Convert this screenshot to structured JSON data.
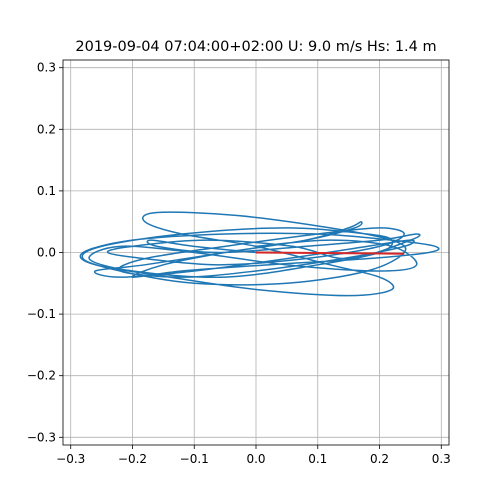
{
  "chart_data": {
    "type": "line",
    "title": "2019-09-04 07:04:00+02:00 U: 9.0 m/s Hs: 1.4 m",
    "xlabel": "",
    "ylabel": "",
    "xlim": [
      -0.3125,
      0.3125
    ],
    "ylim": [
      -0.3125,
      0.3125
    ],
    "grid": true,
    "x_ticks": [
      -0.3,
      -0.2,
      -0.1,
      0.0,
      0.1,
      0.2,
      0.3
    ],
    "y_ticks": [
      0.3,
      0.2,
      0.1,
      0.0,
      -0.1,
      -0.2,
      -0.3
    ],
    "x_tick_labels": [
      "−0.3",
      "−0.2",
      "−0.1",
      "0.0",
      "0.1",
      "0.2",
      "0.3"
    ],
    "y_tick_labels": [
      "0.3",
      "0.2",
      "0.1",
      "0.0",
      "−0.1",
      "−0.2",
      "−0.3"
    ],
    "series": [
      {
        "color": "#1f77b4",
        "x": [
          0.0,
          0.12,
          0.22,
          0.26,
          0.2,
          0.05,
          -0.1,
          -0.22,
          -0.27,
          -0.2,
          -0.05,
          0.1,
          0.2,
          0.22,
          0.18,
          0.05,
          -0.12,
          -0.25,
          -0.28,
          -0.22,
          -0.1,
          0.05,
          0.18,
          0.24,
          0.22,
          0.12,
          -0.03,
          -0.16,
          -0.18,
          -0.12,
          0.0,
          0.12,
          0.2,
          0.22,
          0.15,
          0.0,
          -0.14,
          -0.26,
          -0.28,
          -0.2,
          -0.05,
          0.1,
          0.22,
          0.29,
          0.28,
          0.18,
          0.02,
          -0.12,
          -0.2,
          -0.15,
          -0.05,
          0.08,
          0.15,
          0.17,
          0.16,
          0.08,
          -0.05,
          -0.18,
          -0.26,
          -0.22,
          -0.1,
          0.05,
          0.18,
          0.25,
          0.24,
          0.14,
          0.0,
          -0.12,
          -0.22,
          -0.18,
          -0.05,
          0.1,
          0.2,
          0.24,
          0.2,
          0.08,
          -0.06,
          -0.18,
          -0.24,
          -0.2,
          -0.08,
          0.06,
          0.15,
          0.25,
          0.26,
          0.2,
          0.08,
          -0.06,
          -0.16,
          -0.17,
          -0.1,
          0.0
        ],
        "y": [
          0.01,
          0.02,
          0.01,
          -0.02,
          -0.03,
          -0.02,
          0.0,
          0.01,
          -0.01,
          -0.03,
          -0.04,
          -0.02,
          0.0,
          0.02,
          0.03,
          0.04,
          0.03,
          0.01,
          -0.01,
          -0.03,
          -0.05,
          -0.05,
          -0.03,
          0.0,
          0.02,
          0.04,
          0.06,
          0.065,
          0.05,
          0.03,
          0.01,
          -0.02,
          -0.04,
          -0.06,
          -0.07,
          -0.06,
          -0.04,
          -0.02,
          0.0,
          0.02,
          0.03,
          0.03,
          0.02,
          0.01,
          0.0,
          -0.01,
          -0.02,
          -0.03,
          -0.04,
          -0.02,
          0.0,
          0.02,
          0.04,
          0.05,
          0.04,
          0.02,
          0.0,
          -0.02,
          -0.03,
          -0.04,
          -0.03,
          -0.01,
          0.01,
          0.02,
          0.01,
          -0.01,
          -0.03,
          -0.04,
          -0.03,
          -0.01,
          0.01,
          0.03,
          0.04,
          0.03,
          0.01,
          -0.01,
          -0.02,
          -0.01,
          0.0,
          0.01,
          0.02,
          0.01,
          -0.01,
          0.02,
          0.03,
          0.02,
          0.01,
          0.0,
          0.01,
          0.02,
          0.01,
          0.0
        ]
      },
      {
        "color": "#2ca02c",
        "x": [
          0.0,
          0.03
        ],
        "y": [
          0.0,
          0.0
        ]
      },
      {
        "color": "#d62728",
        "x": [
          0.0,
          0.24
        ],
        "y": [
          0.0,
          -0.002
        ]
      }
    ]
  }
}
